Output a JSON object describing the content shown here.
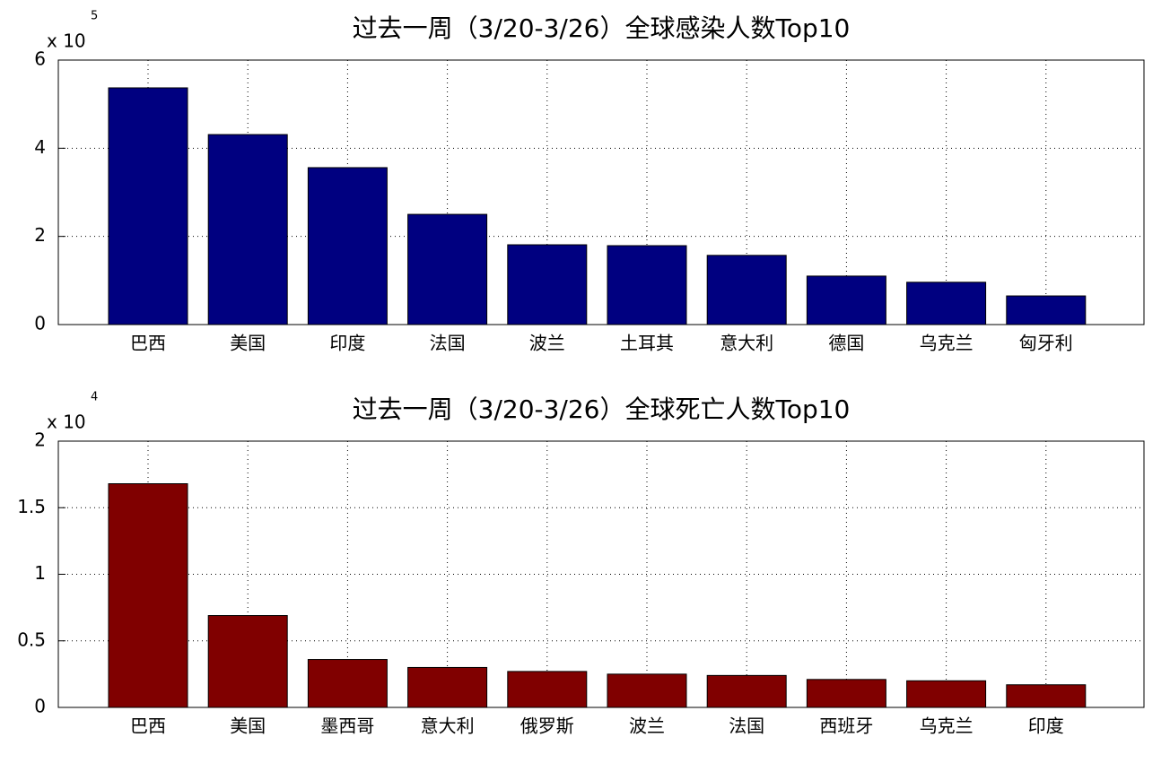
{
  "chart_data": [
    {
      "type": "bar",
      "title": "过去一周（3/20-3/26）全球感染人数Top10",
      "axis_multiplier": {
        "base": "x 10",
        "exponent": "5"
      },
      "categories": [
        "巴西",
        "美国",
        "印度",
        "法国",
        "波兰",
        "土耳其",
        "意大利",
        "德国",
        "乌克兰",
        "匈牙利"
      ],
      "values": [
        5.37,
        4.31,
        3.56,
        2.5,
        1.81,
        1.79,
        1.57,
        1.1,
        0.96,
        0.65
      ],
      "color": "#000080",
      "ylim": [
        0,
        6
      ],
      "yticks": [
        0,
        2,
        4,
        6
      ],
      "grid": true
    },
    {
      "type": "bar",
      "title": "过去一周（3/20-3/26）全球死亡人数Top10",
      "axis_multiplier": {
        "base": "x 10",
        "exponent": "4"
      },
      "categories": [
        "巴西",
        "美国",
        "墨西哥",
        "意大利",
        "俄罗斯",
        "波兰",
        "法国",
        "西班牙",
        "乌克兰",
        "印度"
      ],
      "values": [
        1.68,
        0.69,
        0.36,
        0.3,
        0.27,
        0.25,
        0.24,
        0.21,
        0.2,
        0.17
      ],
      "color": "#800000",
      "ylim": [
        0,
        2
      ],
      "yticks": [
        0,
        0.5,
        1,
        1.5,
        2
      ],
      "grid": true
    }
  ]
}
